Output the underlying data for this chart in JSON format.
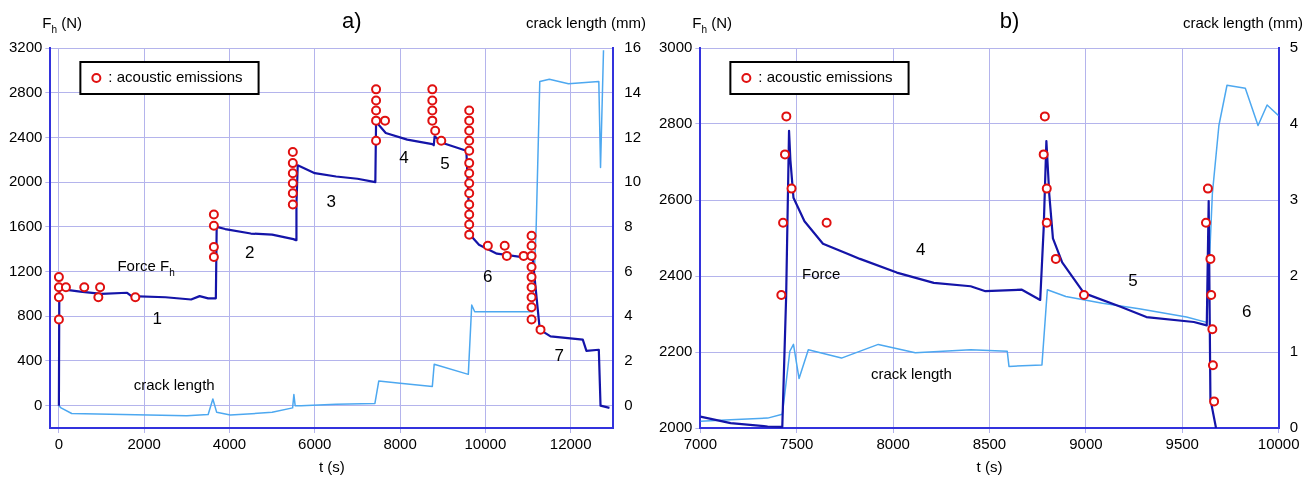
{
  "chart_data": [
    {
      "type": "line",
      "title": "a)",
      "xlabel": "t (s)",
      "ylabel": "F$_{h}$ (N)",
      "y2label": "crack length (mm)",
      "xlim": [
        -200,
        13000
      ],
      "xticks": [
        0,
        2000,
        4000,
        6000,
        8000,
        10000,
        12000
      ],
      "ylim": [
        -200,
        3200
      ],
      "yticks": [
        0,
        400,
        800,
        1200,
        1600,
        2000,
        2400,
        2800,
        3200
      ],
      "y2lim": [
        -1,
        16
      ],
      "y2ticks": [
        0,
        2,
        4,
        6,
        8,
        10,
        12,
        14,
        16
      ],
      "grid": true,
      "legend": "top left",
      "series": [
        {
          "type": "line",
          "name": "Force F$_{h}$",
          "color": "#1414a8",
          "x": [
            0,
            10,
            100,
            500,
            1000,
            1600,
            1700,
            2500,
            3100,
            3300,
            3500,
            3680,
            3700,
            3900,
            4500,
            5000,
            5500,
            5560,
            5570,
            5600,
            6000,
            6500,
            7000,
            7420,
            7437,
            7664,
            8168,
            8756,
            8790,
            8810,
            9000,
            9554,
            9640,
            9850,
            10270,
            11024,
            11108,
            11276,
            11528,
            12284,
            12370,
            12660,
            12700,
            12910
          ],
          "values": [
            0,
            1050,
            1040,
            1020,
            1000,
            1010,
            980,
            970,
            950,
            980,
            960,
            960,
            1600,
            1580,
            1540,
            1530,
            1490,
            1480,
            1800,
            2150,
            2080,
            2050,
            2030,
            2000,
            2540,
            2440,
            2380,
            2340,
            2330,
            2410,
            2350,
            2280,
            1530,
            1440,
            1360,
            1320,
            1320,
            680,
            620,
            590,
            490,
            500,
            0,
            -20
          ]
        },
        {
          "type": "line",
          "name": "crack length",
          "axis": "y2",
          "color": "#4da8f0",
          "x": [
            0,
            50,
            300,
            1500,
            3000,
            3500,
            3610,
            3700,
            4020,
            5000,
            5480,
            5510,
            5540,
            5680,
            6500,
            7410,
            7500,
            8000,
            8756,
            8800,
            9600,
            9680,
            9750,
            11108,
            11190,
            11276,
            11500,
            11948,
            12660,
            12700,
            12770
          ],
          "values": [
            0,
            -0.1,
            -0.35,
            -0.4,
            -0.45,
            -0.4,
            0.3,
            -0.3,
            -0.42,
            -0.3,
            -0.1,
            0.5,
            0,
            0,
            0.06,
            0.1,
            1.1,
            1,
            0.86,
            1.85,
            1.4,
            4.5,
            4.2,
            4.2,
            7.9,
            14.5,
            14.6,
            14.4,
            14.5,
            10.65,
            15.9
          ]
        },
        {
          "type": "scatter",
          "name": ": acoustic emissions",
          "color": "#e01010",
          "marker": "circle",
          "x": [
            0,
            0,
            0,
            0,
            165,
            595,
            925,
            966,
            1792,
            3634,
            3634,
            3634,
            3634,
            5485,
            5485,
            5485,
            5485,
            5485,
            5485,
            7437,
            7437,
            7437,
            7437,
            7437,
            7647,
            8756,
            8756,
            8756,
            8756,
            8823,
            8966,
            9621,
            9621,
            9621,
            9621,
            9621,
            9621,
            9621,
            9621,
            9621,
            9621,
            9621,
            9621,
            9621,
            10058,
            10453,
            10503,
            10898,
            11083,
            11083,
            11083,
            11083,
            11083,
            11083,
            11083,
            11083,
            11083,
            11293
          ],
          "values": [
            1150,
            1060,
            970,
            770,
            1060,
            1060,
            970,
            1060,
            970,
            1710,
            1610,
            1420,
            1330,
            2270,
            2170,
            2080,
            1990,
            1900,
            1800,
            2830,
            2730,
            2640,
            2550,
            2370,
            2550,
            2830,
            2730,
            2640,
            2550,
            2460,
            2370,
            2640,
            2550,
            2460,
            2370,
            2280,
            2170,
            2080,
            1990,
            1900,
            1800,
            1710,
            1620,
            1530,
            1430,
            1430,
            1340,
            1340,
            1520,
            1430,
            1340,
            1240,
            1150,
            1060,
            970,
            880,
            770,
            680
          ]
        }
      ],
      "annotations": [
        "1",
        "2",
        "3",
        "4",
        "5",
        "6",
        "7"
      ]
    },
    {
      "type": "line",
      "title": "b)",
      "xlabel": "t (s)",
      "ylabel": "F$_{h}$ (N)",
      "y2label": "crack length (mm)",
      "xlim": [
        7000,
        10000
      ],
      "xticks": [
        7000,
        7500,
        8000,
        8500,
        9000,
        9500,
        10000
      ],
      "ylim": [
        2000,
        3000
      ],
      "yticks": [
        2000,
        2200,
        2400,
        2600,
        2800,
        3000
      ],
      "y2lim": [
        0,
        5
      ],
      "y2ticks": [
        0,
        1,
        2,
        3,
        4,
        5
      ],
      "grid": true,
      "legend": "top left",
      "series": [
        {
          "type": "line",
          "name": "Force",
          "color": "#1414a8",
          "x": [
            7000,
            7157,
            7349,
            7425,
            7445,
            7460,
            7467,
            7483,
            7540,
            7636,
            7828,
            8019,
            8211,
            8402,
            8479,
            8668,
            8763,
            8781,
            8795,
            8810,
            8829,
            8877,
            8990,
            9180,
            9314,
            9560,
            9627,
            9637,
            9646,
            9675
          ],
          "values": [
            2030,
            2013,
            2004,
            2003,
            2346,
            2782,
            2705,
            2606,
            2544,
            2485,
            2445,
            2409,
            2382,
            2373,
            2360,
            2364,
            2337,
            2526,
            2755,
            2615,
            2499,
            2436,
            2355,
            2319,
            2292,
            2279,
            2270,
            2597,
            2076,
            2000
          ]
        },
        {
          "type": "line",
          "name": "crack length",
          "axis": "y2",
          "color": "#4da8f0",
          "x": [
            7000,
            7157,
            7349,
            7425,
            7445,
            7464,
            7483,
            7512,
            7560,
            7732,
            7923,
            8115,
            8402,
            8592,
            8601,
            8772,
            8791,
            8800,
            8896,
            9086,
            9276,
            9522,
            9627,
            9656,
            9690,
            9732,
            9827,
            9893,
            9940,
            10000
          ],
          "values": [
            0.09,
            0.11,
            0.13,
            0.18,
            0.6,
            1.01,
            1.1,
            0.65,
            1.03,
            0.92,
            1.1,
            0.99,
            1.03,
            1.01,
            0.81,
            0.83,
            1.5,
            1.82,
            1.73,
            1.64,
            1.57,
            1.46,
            1.39,
            3.08,
            3.98,
            4.51,
            4.47,
            3.98,
            4.25,
            4.11
          ]
        },
        {
          "type": "scatter",
          "name": ": acoustic emissions",
          "color": "#e01010",
          "marker": "circle",
          "x": [
            7446,
            7439,
            7473,
            7429,
            7420,
            7655,
            8787,
            8781,
            8797,
            8797,
            8844,
            8990,
            9633,
            9623,
            9646,
            9650,
            9656,
            9659,
            9665
          ],
          "values": [
            2820,
            2720,
            2630,
            2540,
            2350,
            2540,
            2820,
            2720,
            2630,
            2540,
            2445,
            2350,
            2630,
            2540,
            2445,
            2350,
            2260,
            2165,
            2070
          ]
        }
      ],
      "annotations": [
        "4",
        "5",
        "6"
      ]
    }
  ]
}
